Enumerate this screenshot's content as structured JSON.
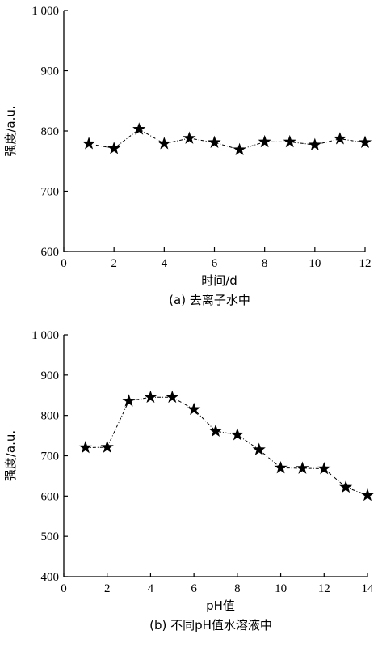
{
  "chart_data": [
    {
      "type": "line",
      "caption": "(a)  去离子水中",
      "xlabel": "时间/d",
      "ylabel": "强度/a.u.",
      "xlim": [
        0,
        12
      ],
      "ylim": [
        600,
        1000
      ],
      "xticks": [
        0,
        2,
        4,
        6,
        8,
        10,
        12
      ],
      "xtick_labels": [
        "0",
        "2",
        "4",
        "6",
        "8",
        "10",
        "12"
      ],
      "yticks": [
        600,
        700,
        800,
        900,
        1000
      ],
      "ytick_labels": [
        "600",
        "700",
        "800",
        "900",
        "1 000"
      ],
      "grid": false,
      "marker": "star",
      "line_style": "dash-dot",
      "x": [
        1,
        2,
        3,
        4,
        5,
        6,
        7,
        8,
        9,
        10,
        11,
        12
      ],
      "series": [
        {
          "values": [
            779,
            771,
            803,
            779,
            788,
            781,
            769,
            782,
            782,
            777,
            787,
            781
          ]
        }
      ]
    },
    {
      "type": "line",
      "caption": "(b)  不同pH值水溶液中",
      "xlabel": "pH值",
      "ylabel": "强度/a.u.",
      "xlim": [
        0,
        14
      ],
      "ylim": [
        400,
        1000
      ],
      "xticks": [
        0,
        2,
        4,
        6,
        8,
        10,
        12,
        14
      ],
      "xtick_labels": [
        "0",
        "2",
        "4",
        "6",
        "8",
        "10",
        "12",
        "14"
      ],
      "yticks": [
        400,
        500,
        600,
        700,
        800,
        900,
        1000
      ],
      "ytick_labels": [
        "400",
        "500",
        "600",
        "700",
        "800",
        "900",
        "1 000"
      ],
      "grid": false,
      "marker": "star",
      "line_style": "dash-dot",
      "x": [
        1,
        2,
        3,
        4,
        5,
        6,
        7,
        8,
        9,
        10,
        11,
        12,
        13,
        14
      ],
      "series": [
        {
          "values": [
            720,
            721,
            836,
            845,
            845,
            815,
            761,
            752,
            715,
            670,
            669,
            668,
            622,
            602
          ]
        }
      ]
    }
  ]
}
